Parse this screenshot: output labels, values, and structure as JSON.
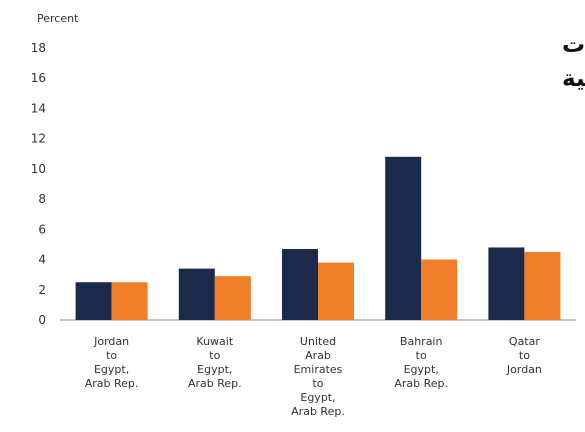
{
  "chart_data": {
    "type": "bar",
    "title_lines": [
      "ارخص التحويلات",
      "بين الدول العربية"
    ],
    "unit_label": "Percent",
    "ylim": [
      0,
      18
    ],
    "yticks": [
      0,
      2,
      4,
      6,
      8,
      10,
      12,
      14,
      16,
      18
    ],
    "grid": false,
    "categories": [
      [
        "Jordan",
        "to",
        "Egypt,",
        "Arab Rep."
      ],
      [
        "Kuwait",
        "to",
        "Egypt,",
        "Arab Rep."
      ],
      [
        "United",
        "Arab",
        "Emirates",
        "to",
        "Egypt,",
        "Arab Rep."
      ],
      [
        "Bahrain",
        "to",
        "Egypt,",
        "Arab Rep."
      ],
      [
        "Qatar",
        "to",
        "Jordan"
      ]
    ],
    "series": [
      {
        "color": "#1b2a4a",
        "values": [
          2.5,
          3.4,
          4.7,
          10.8,
          4.8
        ]
      },
      {
        "color": "#f07d28",
        "values": [
          2.5,
          2.9,
          3.8,
          4.0,
          4.5
        ]
      }
    ]
  }
}
